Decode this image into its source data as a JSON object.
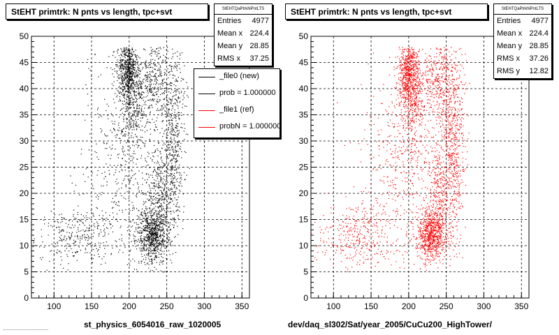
{
  "panels": [
    {
      "title": "StEHT primtrk: N pnts vs length, tpc+svt",
      "stats": {
        "name": "StEHTQaPtrkNPntLTS",
        "rows": [
          {
            "label": "Entries",
            "value": "4977"
          },
          {
            "label": "Mean x",
            "value": "224.4"
          },
          {
            "label": "Mean y",
            "value": "28.85"
          },
          {
            "label": "RMS x",
            "value": "37.25"
          }
        ]
      },
      "legend": [
        {
          "label": "_file0 (new)",
          "color": "#000000"
        },
        {
          "label": "prob = 1.000000",
          "color": "#000000"
        },
        {
          "label": "_file1 (ref)",
          "color": "#ff0000"
        },
        {
          "label": "probN = 1.000000",
          "color": "#ff0000"
        }
      ],
      "xcaption": "st_physics_6054016_raw_1020005",
      "faint_text": "~~~~~~~~~~~~~~~~",
      "point_color": "#000000"
    },
    {
      "title": "StEHT primtrk: N pnts vs length, tpc+svt",
      "stats": {
        "name": "StEHTQaPtrkNPntLTS",
        "rows": [
          {
            "label": "Entries",
            "value": "4977"
          },
          {
            "label": "Mean x",
            "value": "224.4"
          },
          {
            "label": "Mean y",
            "value": "28.85"
          },
          {
            "label": "RMS x",
            "value": "37.26"
          },
          {
            "label": "RMS y",
            "value": "12.82"
          }
        ]
      },
      "xcaption": "dev/daq_sl302/Sat/year_2005/CuCu200_HighTower/",
      "point_color": "#ff0000"
    }
  ],
  "chart_data": [
    {
      "type": "scatter",
      "title": "StEHT primtrk: N pnts vs length, tpc+svt",
      "xlim": [
        70,
        360
      ],
      "ylim": [
        0,
        50
      ],
      "xticks": [
        100,
        150,
        200,
        250,
        300,
        350
      ],
      "yticks": [
        0,
        5,
        10,
        15,
        20,
        25,
        30,
        35,
        40,
        45,
        50
      ],
      "grid": true,
      "color": "#000000",
      "entries": 4977,
      "clusters": [
        {
          "x": 197,
          "y": 44,
          "sx": 7,
          "sy": 3,
          "weight": 0.16
        },
        {
          "x": 205,
          "y": 38,
          "sx": 9,
          "sy": 5,
          "weight": 0.1
        },
        {
          "x": 235,
          "y": 42,
          "sx": 14,
          "sy": 4,
          "weight": 0.1
        },
        {
          "x": 258,
          "y": 30,
          "sx": 8,
          "sy": 9,
          "weight": 0.14
        },
        {
          "x": 230,
          "y": 12,
          "sx": 10,
          "sy": 2.5,
          "weight": 0.2
        },
        {
          "x": 240,
          "y": 20,
          "sx": 10,
          "sy": 5,
          "weight": 0.1
        },
        {
          "x": 130,
          "y": 12,
          "sx": 25,
          "sy": 3,
          "weight": 0.08
        },
        {
          "x": 190,
          "y": 25,
          "sx": 25,
          "sy": 10,
          "weight": 0.12
        }
      ]
    },
    {
      "type": "scatter",
      "title": "StEHT primtrk: N pnts vs length, tpc+svt",
      "xlim": [
        70,
        360
      ],
      "ylim": [
        0,
        50
      ],
      "xticks": [
        100,
        150,
        200,
        250,
        300,
        350
      ],
      "yticks": [
        0,
        5,
        10,
        15,
        20,
        25,
        30,
        35,
        40,
        45,
        50
      ],
      "grid": true,
      "color": "#ff0000",
      "entries": 4977,
      "clusters": [
        {
          "x": 200,
          "y": 43,
          "sx": 7,
          "sy": 3,
          "weight": 0.16
        },
        {
          "x": 205,
          "y": 38,
          "sx": 9,
          "sy": 5,
          "weight": 0.1
        },
        {
          "x": 238,
          "y": 42,
          "sx": 14,
          "sy": 4,
          "weight": 0.1
        },
        {
          "x": 258,
          "y": 30,
          "sx": 8,
          "sy": 9,
          "weight": 0.14
        },
        {
          "x": 230,
          "y": 12,
          "sx": 10,
          "sy": 2.5,
          "weight": 0.2
        },
        {
          "x": 240,
          "y": 20,
          "sx": 10,
          "sy": 5,
          "weight": 0.1
        },
        {
          "x": 130,
          "y": 12,
          "sx": 25,
          "sy": 3,
          "weight": 0.08
        },
        {
          "x": 190,
          "y": 25,
          "sx": 25,
          "sy": 10,
          "weight": 0.12
        }
      ]
    }
  ]
}
